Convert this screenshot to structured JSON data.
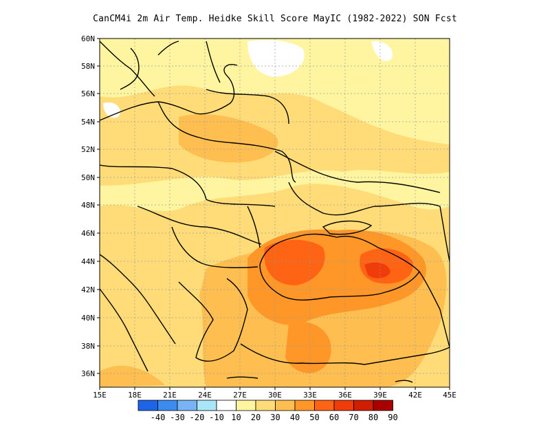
{
  "title": "CanCM4i  2m Air Temp. Heidke Skill Score MayIC (1982-2022) SON Fcst",
  "y_ticks": [
    "60N",
    "58N",
    "56N",
    "54N",
    "52N",
    "50N",
    "48N",
    "46N",
    "44N",
    "42N",
    "40N",
    "38N",
    "36N"
  ],
  "x_ticks": [
    "15E",
    "18E",
    "21E",
    "24E",
    "27E",
    "30E",
    "33E",
    "36E",
    "39E",
    "42E",
    "45E"
  ],
  "colorbar": {
    "labels": [
      "-40",
      "-30",
      "-20",
      "-10",
      "10",
      "20",
      "30",
      "40",
      "50",
      "60",
      "70",
      "80",
      "90"
    ],
    "colors": [
      "#1e64e6",
      "#3c8cf0",
      "#78b4f5",
      "#aae6fa",
      "#ffffff",
      "#fff5a0",
      "#ffdc78",
      "#ffbe50",
      "#ff9628",
      "#ff6414",
      "#f03c0a",
      "#d21e00",
      "#aa0000"
    ]
  },
  "chart_data": {
    "type": "heatmap",
    "title": "CanCM4i  2m Air Temp. Heidke Skill Score MayIC (1982-2022) SON Fcst",
    "x_range": [
      15,
      45
    ],
    "y_range": [
      35,
      60
    ],
    "grid": true,
    "colorbar_levels": [
      -40,
      -30,
      -20,
      -10,
      10,
      20,
      30,
      40,
      50,
      60,
      70,
      80,
      90
    ]
  }
}
